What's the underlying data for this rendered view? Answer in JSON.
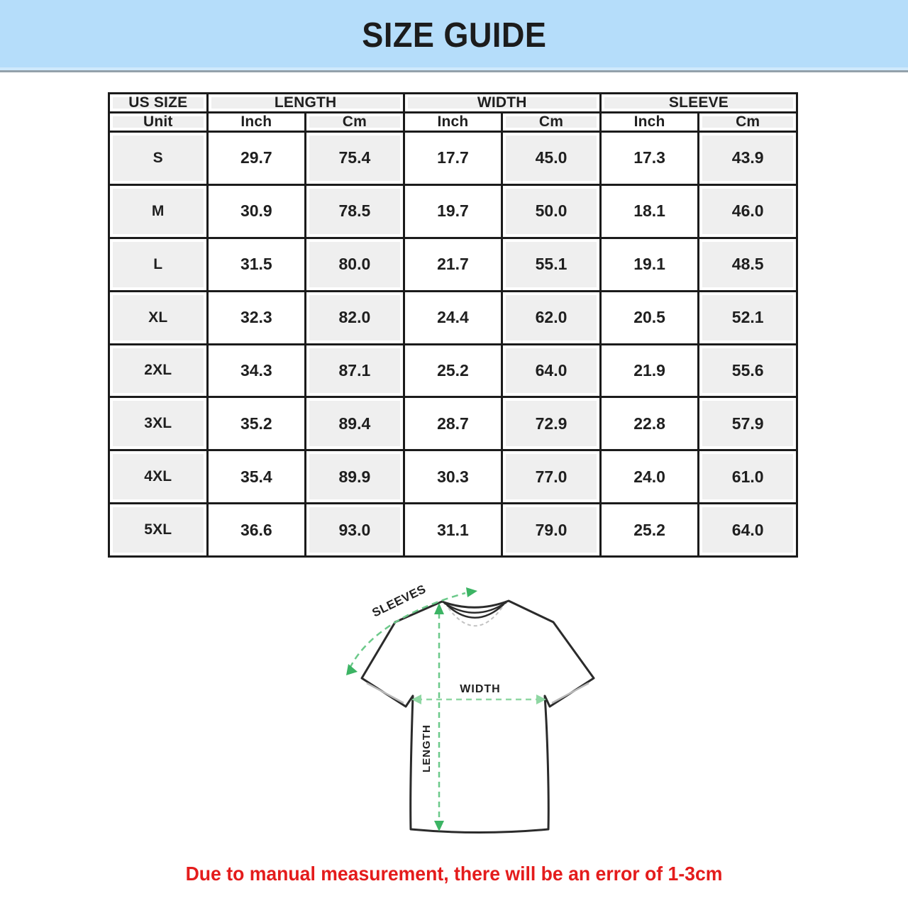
{
  "header": {
    "title": "SIZE GUIDE",
    "background": "#b5ddfa",
    "text_color": "#1c1c1c"
  },
  "size_chart": {
    "column_groups": [
      {
        "label": "US SIZE",
        "span": 1
      },
      {
        "label": "LENGTH",
        "span": 2
      },
      {
        "label": "WIDTH",
        "span": 2
      },
      {
        "label": "SLEEVE",
        "span": 2
      }
    ],
    "unit_row": [
      "Unit",
      "Inch",
      "Cm",
      "Inch",
      "Cm",
      "Inch",
      "Cm"
    ],
    "rows": [
      {
        "size": "S",
        "values": [
          "29.7",
          "75.4",
          "17.7",
          "45.0",
          "17.3",
          "43.9"
        ]
      },
      {
        "size": "M",
        "values": [
          "30.9",
          "78.5",
          "19.7",
          "50.0",
          "18.1",
          "46.0"
        ]
      },
      {
        "size": "L",
        "values": [
          "31.5",
          "80.0",
          "21.7",
          "55.1",
          "19.1",
          "48.5"
        ]
      },
      {
        "size": "XL",
        "values": [
          "32.3",
          "82.0",
          "24.4",
          "62.0",
          "20.5",
          "52.1"
        ]
      },
      {
        "size": "2XL",
        "values": [
          "34.3",
          "87.1",
          "25.2",
          "64.0",
          "21.9",
          "55.6"
        ]
      },
      {
        "size": "3XL",
        "values": [
          "35.2",
          "89.4",
          "28.7",
          "72.9",
          "22.8",
          "57.9"
        ]
      },
      {
        "size": "4XL",
        "values": [
          "35.4",
          "89.9",
          "30.3",
          "77.0",
          "24.0",
          "61.0"
        ]
      },
      {
        "size": "5XL",
        "values": [
          "36.6",
          "93.0",
          "31.1",
          "79.0",
          "25.2",
          "64.0"
        ]
      }
    ],
    "colors": {
      "border": "#1b1b1b",
      "shaded_cell": "#efefef",
      "plain_cell": "#ffffff"
    }
  },
  "diagram": {
    "labels": {
      "sleeves": "SLEEVES",
      "width": "WIDTH",
      "length": "LENGTH"
    },
    "colors": {
      "outline": "#2b2b2b",
      "dash": "#6cc98a",
      "arrow": "#3cb464",
      "cuff": "#b9b9b9"
    }
  },
  "footnote": {
    "text": "Due to manual measurement, there will be an error of 1-3cm",
    "color": "#e41c1c"
  },
  "chart_data": {
    "type": "table",
    "title": "SIZE GUIDE",
    "columns": [
      "US SIZE",
      "LENGTH Inch",
      "LENGTH Cm",
      "WIDTH Inch",
      "WIDTH Cm",
      "SLEEVE Inch",
      "SLEEVE Cm"
    ],
    "rows": [
      [
        "S",
        29.7,
        75.4,
        17.7,
        45.0,
        17.3,
        43.9
      ],
      [
        "M",
        30.9,
        78.5,
        19.7,
        50.0,
        18.1,
        46.0
      ],
      [
        "L",
        31.5,
        80.0,
        21.7,
        55.1,
        19.1,
        48.5
      ],
      [
        "XL",
        32.3,
        82.0,
        24.4,
        62.0,
        20.5,
        52.1
      ],
      [
        "2XL",
        34.3,
        87.1,
        25.2,
        64.0,
        21.9,
        55.6
      ],
      [
        "3XL",
        35.2,
        89.4,
        28.7,
        72.9,
        22.8,
        57.9
      ],
      [
        "4XL",
        35.4,
        89.9,
        30.3,
        77.0,
        24.0,
        61.0
      ],
      [
        "5XL",
        36.6,
        93.0,
        31.1,
        79.0,
        25.2,
        64.0
      ]
    ],
    "note": "Due to manual measurement, there will be an error of 1-3cm"
  }
}
